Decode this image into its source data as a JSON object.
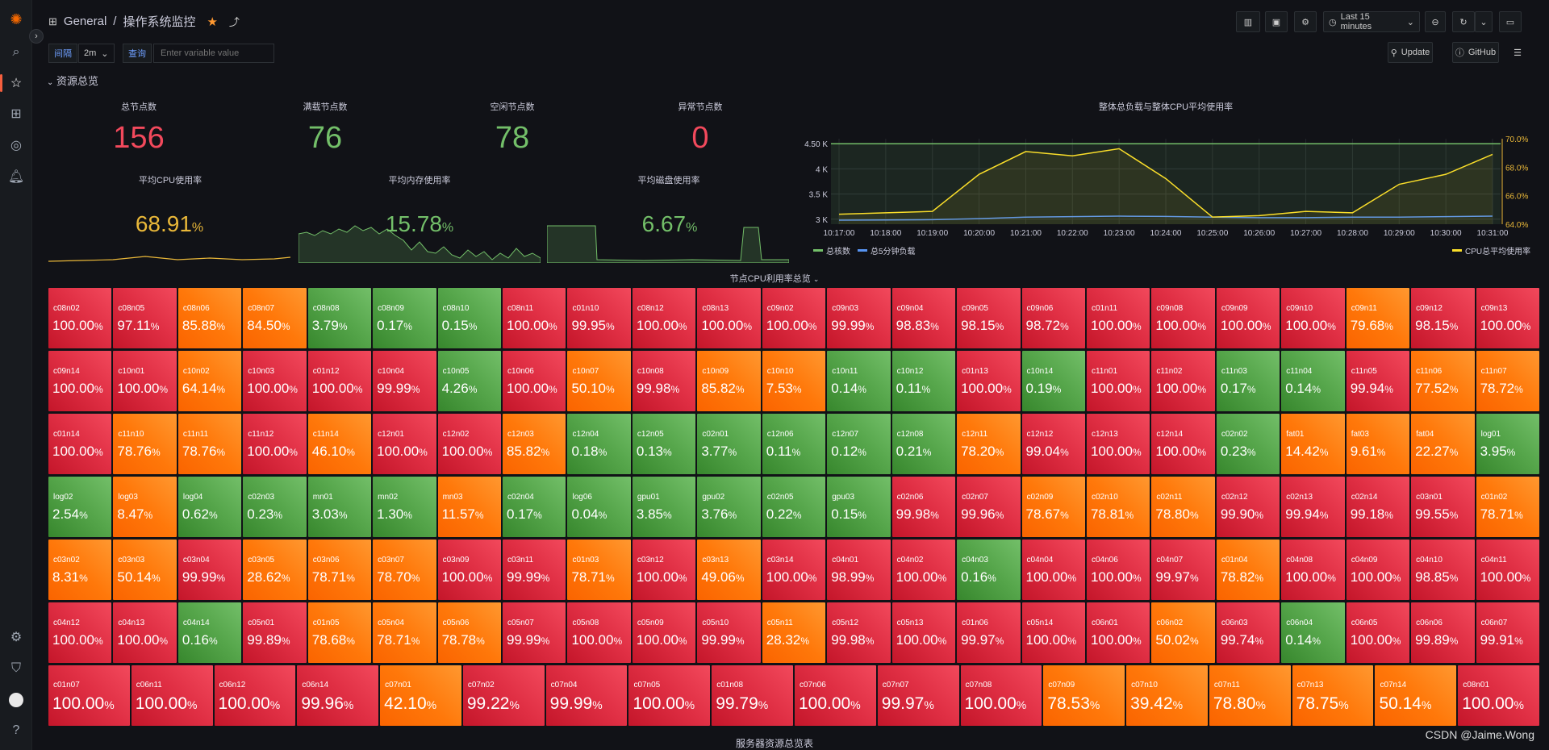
{
  "breadcrumb": {
    "folder": "General",
    "separator": "/",
    "title": "操作系统监控"
  },
  "toolbar": {
    "time_range": "Last 15 minutes"
  },
  "variables": {
    "interval_label": "间隔",
    "interval_value": "2m",
    "query_label": "查询",
    "query_placeholder": "Enter variable value"
  },
  "links": {
    "update": "Update",
    "github": "GitHub"
  },
  "row": {
    "title": "资源总览"
  },
  "stats": [
    {
      "title": "总节点数",
      "value": "156",
      "color": "#f2495c"
    },
    {
      "title": "满载节点数",
      "value": "76",
      "color": "#73bf69"
    },
    {
      "title": "空闲节点数",
      "value": "78",
      "color": "#73bf69"
    },
    {
      "title": "异常节点数",
      "value": "0",
      "color": "#f2495c"
    }
  ],
  "usage": [
    {
      "title": "平均CPU使用率",
      "value": "68.91",
      "unit": "%",
      "color": "#eab839"
    },
    {
      "title": "平均内存使用率",
      "value": "15.78",
      "unit": "%",
      "color": "#73bf69"
    },
    {
      "title": "平均磁盘使用率",
      "value": "6.67",
      "unit": "%",
      "color": "#73bf69"
    }
  ],
  "heat_title": "节点CPU利用率总览",
  "table_title": "服务器资源总览表",
  "watermark": "CSDN @Jaime.Wong",
  "chart_data": {
    "type": "line",
    "title": "整体总负载与整体CPU平均使用率",
    "x": [
      "10:17:00",
      "10:18:00",
      "10:19:00",
      "10:20:00",
      "10:21:00",
      "10:22:00",
      "10:23:00",
      "10:24:00",
      "10:25:00",
      "10:26:00",
      "10:27:00",
      "10:28:00",
      "10:29:00",
      "10:30:00",
      "10:31:00"
    ],
    "left_axis": {
      "ticks": [
        "3 K",
        "3.5 K",
        "4 K",
        "4.50 K"
      ],
      "range": [
        2900,
        4600
      ]
    },
    "right_axis": {
      "ticks": [
        "64.0%",
        "66.0%",
        "68.0%",
        "70.0%"
      ],
      "range": [
        64,
        70
      ]
    },
    "series": [
      {
        "name": "总核数",
        "color": "#73bf69",
        "axis": "left",
        "values": [
          4500,
          4500,
          4500,
          4500,
          4500,
          4500,
          4500,
          4500,
          4500,
          4500,
          4500,
          4500,
          4500,
          4500,
          4500
        ]
      },
      {
        "name": "总5分钟负载",
        "color": "#5794f2",
        "axis": "left",
        "values": [
          2980,
          2985,
          2990,
          3010,
          3040,
          3050,
          3060,
          3055,
          3040,
          3030,
          3030,
          3040,
          3040,
          3050,
          3060
        ]
      },
      {
        "name": "CPU总平均使用率",
        "color": "#fade2a",
        "axis": "right",
        "values": [
          64.7,
          64.8,
          64.9,
          67.5,
          69.1,
          68.8,
          69.3,
          67.2,
          64.5,
          64.6,
          64.9,
          64.8,
          66.8,
          67.5,
          68.9
        ]
      }
    ]
  },
  "nodes": [
    [
      "c08n02",
      "100.00",
      "r"
    ],
    [
      "c08n05",
      "97.11",
      "r"
    ],
    [
      "c08n06",
      "85.88",
      "o"
    ],
    [
      "c08n07",
      "84.50",
      "o"
    ],
    [
      "c08n08",
      "3.79",
      "g"
    ],
    [
      "c08n09",
      "0.17",
      "g"
    ],
    [
      "c08n10",
      "0.15",
      "g"
    ],
    [
      "c08n11",
      "100.00",
      "r"
    ],
    [
      "c01n10",
      "99.95",
      "r"
    ],
    [
      "c08n12",
      "100.00",
      "r"
    ],
    [
      "c08n13",
      "100.00",
      "r"
    ],
    [
      "c09n02",
      "100.00",
      "r"
    ],
    [
      "c09n03",
      "99.99",
      "r"
    ],
    [
      "c09n04",
      "98.83",
      "r"
    ],
    [
      "c09n05",
      "98.15",
      "r"
    ],
    [
      "c09n06",
      "98.72",
      "r"
    ],
    [
      "c01n11",
      "100.00",
      "r"
    ],
    [
      "c09n08",
      "100.00",
      "r"
    ],
    [
      "c09n09",
      "100.00",
      "r"
    ],
    [
      "c09n10",
      "100.00",
      "r"
    ],
    [
      "c09n11",
      "79.68",
      "o"
    ],
    [
      "c09n12",
      "98.15",
      "r"
    ],
    [
      "c09n13",
      "100.00",
      "r"
    ],
    [
      "c09n14",
      "100.00",
      "r"
    ],
    [
      "c10n01",
      "100.00",
      "r"
    ],
    [
      "c10n02",
      "64.14",
      "o"
    ],
    [
      "c10n03",
      "100.00",
      "r"
    ],
    [
      "c01n12",
      "100.00",
      "r"
    ],
    [
      "c10n04",
      "99.99",
      "r"
    ],
    [
      "c10n05",
      "4.26",
      "g"
    ],
    [
      "c10n06",
      "100.00",
      "r"
    ],
    [
      "c10n07",
      "50.10",
      "o"
    ],
    [
      "c10n08",
      "99.98",
      "r"
    ],
    [
      "c10n09",
      "85.82",
      "o"
    ],
    [
      "c10n10",
      "7.53",
      "o"
    ],
    [
      "c10n11",
      "0.14",
      "g"
    ],
    [
      "c10n12",
      "0.11",
      "g"
    ],
    [
      "c01n13",
      "100.00",
      "r"
    ],
    [
      "c10n14",
      "0.19",
      "g"
    ],
    [
      "c11n01",
      "100.00",
      "r"
    ],
    [
      "c11n02",
      "100.00",
      "r"
    ],
    [
      "c11n03",
      "0.17",
      "g"
    ],
    [
      "c11n04",
      "0.14",
      "g"
    ],
    [
      "c11n05",
      "99.94",
      "r"
    ],
    [
      "c11n06",
      "77.52",
      "o"
    ],
    [
      "c11n07",
      "78.72",
      "o"
    ],
    [
      "c01n14",
      "100.00",
      "r"
    ],
    [
      "c11n10",
      "78.76",
      "o"
    ],
    [
      "c11n11",
      "78.76",
      "o"
    ],
    [
      "c11n12",
      "100.00",
      "r"
    ],
    [
      "c11n14",
      "46.10",
      "o"
    ],
    [
      "c12n01",
      "100.00",
      "r"
    ],
    [
      "c12n02",
      "100.00",
      "r"
    ],
    [
      "c12n03",
      "85.82",
      "o"
    ],
    [
      "c12n04",
      "0.18",
      "g"
    ],
    [
      "c12n05",
      "0.13",
      "g"
    ],
    [
      "c02n01",
      "3.77",
      "g"
    ],
    [
      "c12n06",
      "0.11",
      "g"
    ],
    [
      "c12n07",
      "0.12",
      "g"
    ],
    [
      "c12n08",
      "0.21",
      "g"
    ],
    [
      "c12n11",
      "78.20",
      "o"
    ],
    [
      "c12n12",
      "99.04",
      "r"
    ],
    [
      "c12n13",
      "100.00",
      "r"
    ],
    [
      "c12n14",
      "100.00",
      "r"
    ],
    [
      "c02n02",
      "0.23",
      "g"
    ],
    [
      "fat01",
      "14.42",
      "o"
    ],
    [
      "fat03",
      "9.61",
      "o"
    ],
    [
      "fat04",
      "22.27",
      "o"
    ],
    [
      "log01",
      "3.95",
      "g"
    ],
    [
      "log02",
      "2.54",
      "g"
    ],
    [
      "log03",
      "8.47",
      "o"
    ],
    [
      "log04",
      "0.62",
      "g"
    ],
    [
      "c02n03",
      "0.23",
      "g"
    ],
    [
      "mn01",
      "3.03",
      "g"
    ],
    [
      "mn02",
      "1.30",
      "g"
    ],
    [
      "mn03",
      "11.57",
      "o"
    ],
    [
      "c02n04",
      "0.17",
      "g"
    ],
    [
      "log06",
      "0.04",
      "g"
    ],
    [
      "gpu01",
      "3.85",
      "g"
    ],
    [
      "gpu02",
      "3.76",
      "g"
    ],
    [
      "c02n05",
      "0.22",
      "g"
    ],
    [
      "gpu03",
      "0.15",
      "g"
    ],
    [
      "c02n06",
      "99.98",
      "r"
    ],
    [
      "c02n07",
      "99.96",
      "r"
    ],
    [
      "c02n09",
      "78.67",
      "o"
    ],
    [
      "c02n10",
      "78.81",
      "o"
    ],
    [
      "c02n11",
      "78.80",
      "o"
    ],
    [
      "c02n12",
      "99.90",
      "r"
    ],
    [
      "c02n13",
      "99.94",
      "r"
    ],
    [
      "c02n14",
      "99.18",
      "r"
    ],
    [
      "c03n01",
      "99.55",
      "r"
    ],
    [
      "c01n02",
      "78.71",
      "o"
    ],
    [
      "c03n02",
      "8.31",
      "o"
    ],
    [
      "c03n03",
      "50.14",
      "o"
    ],
    [
      "c03n04",
      "99.99",
      "r"
    ],
    [
      "c03n05",
      "28.62",
      "o"
    ],
    [
      "c03n06",
      "78.71",
      "o"
    ],
    [
      "c03n07",
      "78.70",
      "o"
    ],
    [
      "c03n09",
      "100.00",
      "r"
    ],
    [
      "c03n11",
      "99.99",
      "r"
    ],
    [
      "c01n03",
      "78.71",
      "o"
    ],
    [
      "c03n12",
      "100.00",
      "r"
    ],
    [
      "c03n13",
      "49.06",
      "o"
    ],
    [
      "c03n14",
      "100.00",
      "r"
    ],
    [
      "c04n01",
      "98.99",
      "r"
    ],
    [
      "c04n02",
      "100.00",
      "r"
    ],
    [
      "c04n03",
      "0.16",
      "g"
    ],
    [
      "c04n04",
      "100.00",
      "r"
    ],
    [
      "c04n06",
      "100.00",
      "r"
    ],
    [
      "c04n07",
      "99.97",
      "r"
    ],
    [
      "c01n04",
      "78.82",
      "o"
    ],
    [
      "c04n08",
      "100.00",
      "r"
    ],
    [
      "c04n09",
      "100.00",
      "r"
    ],
    [
      "c04n10",
      "98.85",
      "r"
    ],
    [
      "c04n11",
      "100.00",
      "r"
    ],
    [
      "c04n12",
      "100.00",
      "r"
    ],
    [
      "c04n13",
      "100.00",
      "r"
    ],
    [
      "c04n14",
      "0.16",
      "g"
    ],
    [
      "c05n01",
      "99.89",
      "r"
    ],
    [
      "c01n05",
      "78.68",
      "o"
    ],
    [
      "c05n04",
      "78.71",
      "o"
    ],
    [
      "c05n06",
      "78.78",
      "o"
    ],
    [
      "c05n07",
      "99.99",
      "r"
    ],
    [
      "c05n08",
      "100.00",
      "r"
    ],
    [
      "c05n09",
      "100.00",
      "r"
    ],
    [
      "c05n10",
      "99.99",
      "r"
    ],
    [
      "c05n11",
      "28.32",
      "o"
    ],
    [
      "c05n12",
      "99.98",
      "r"
    ],
    [
      "c05n13",
      "100.00",
      "r"
    ],
    [
      "c01n06",
      "99.97",
      "r"
    ],
    [
      "c05n14",
      "100.00",
      "r"
    ],
    [
      "c06n01",
      "100.00",
      "r"
    ],
    [
      "c06n02",
      "50.02",
      "o"
    ],
    [
      "c06n03",
      "99.74",
      "r"
    ],
    [
      "c06n04",
      "0.14",
      "g"
    ],
    [
      "c06n05",
      "100.00",
      "r"
    ],
    [
      "c06n06",
      "99.89",
      "r"
    ],
    [
      "c06n07",
      "99.91",
      "r"
    ],
    [
      "c01n07",
      "100.00",
      "r"
    ],
    [
      "c06n11",
      "100.00",
      "r"
    ],
    [
      "c06n12",
      "100.00",
      "r"
    ],
    [
      "c06n14",
      "99.96",
      "r"
    ],
    [
      "c07n01",
      "42.10",
      "o"
    ],
    [
      "c07n02",
      "99.22",
      "r"
    ],
    [
      "c07n04",
      "99.99",
      "r"
    ],
    [
      "c07n05",
      "100.00",
      "r"
    ],
    [
      "c01n08",
      "99.79",
      "r"
    ],
    [
      "c07n06",
      "100.00",
      "r"
    ],
    [
      "c07n07",
      "99.97",
      "r"
    ],
    [
      "c07n08",
      "100.00",
      "r"
    ],
    [
      "c07n09",
      "78.53",
      "o"
    ],
    [
      "c07n10",
      "39.42",
      "o"
    ],
    [
      "c07n11",
      "78.80",
      "o"
    ],
    [
      "c07n13",
      "78.75",
      "o"
    ],
    [
      "c07n14",
      "50.14",
      "o"
    ],
    [
      "c08n01",
      "100.00",
      "r"
    ]
  ]
}
